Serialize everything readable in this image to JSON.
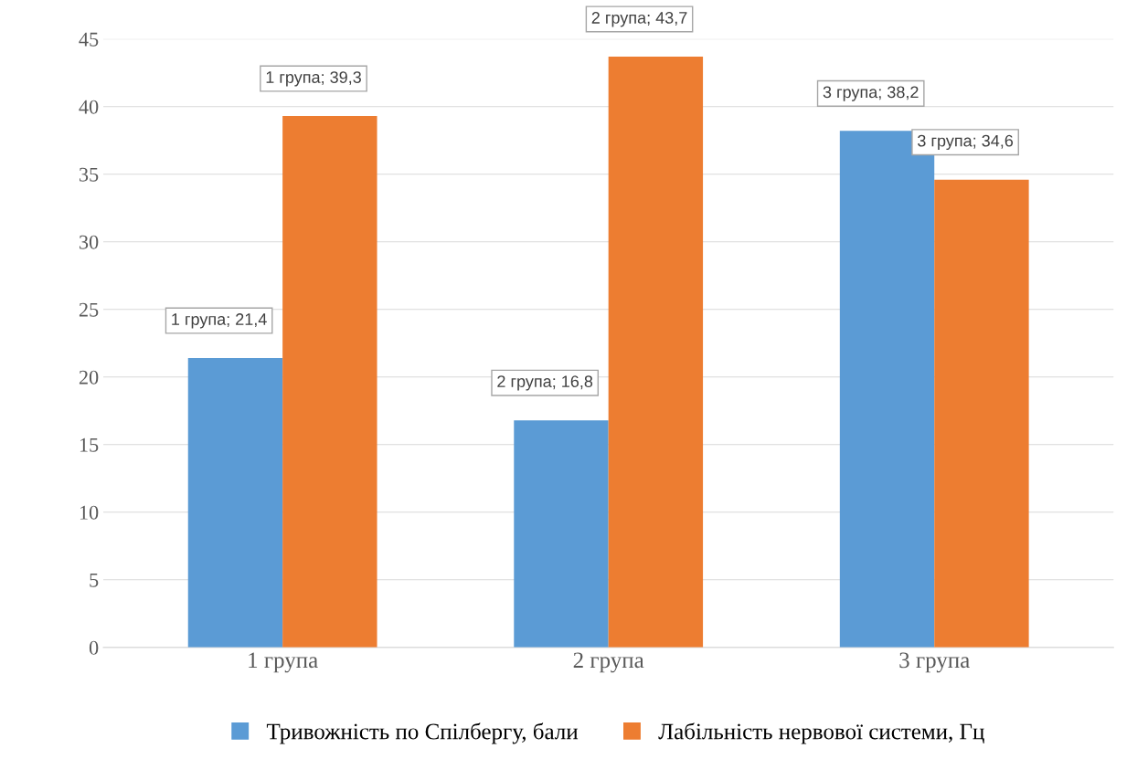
{
  "chart_data": {
    "type": "bar",
    "categories": [
      "1 група",
      "2 група",
      "3 група"
    ],
    "series": [
      {
        "name": "Тривожність по Спілбергу, бали",
        "color": "#5b9bd5",
        "values": [
          21.4,
          16.8,
          38.2
        ],
        "value_labels": [
          "1 група; 21,4",
          "2 група; 16,8",
          "3 група; 38,2"
        ]
      },
      {
        "name": "Лабільність нервової системи, Гц",
        "color": "#ed7d31",
        "values": [
          39.3,
          43.7,
          34.6
        ],
        "value_labels": [
          "1 група; 39,3",
          "2 група; 43,7",
          "3 група; 34,6"
        ]
      }
    ],
    "ylim": [
      0,
      45
    ],
    "yticks": [
      0,
      5,
      10,
      15,
      20,
      25,
      30,
      35,
      40,
      45
    ],
    "grid": "y",
    "legend": "bottom"
  }
}
